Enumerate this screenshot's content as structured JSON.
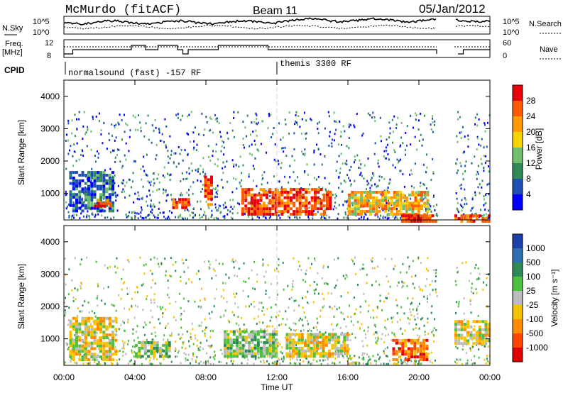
{
  "header": {
    "station": "McMurdo (fitACF)",
    "beam": "Beam 11",
    "date": "05/Jan/2012"
  },
  "noise_panel": {
    "left_label": "N.Sky",
    "right_label": "N.Search",
    "left_ticks": [
      "10^5",
      "10^0"
    ],
    "right_ticks": [
      "10^5",
      "10^0"
    ]
  },
  "freq_panel": {
    "left_label_1": "Freq.",
    "left_label_2": "[MHz]",
    "right_label": "Nave",
    "left_ticks": [
      "12",
      "8"
    ],
    "right_ticks": [
      "60",
      "0"
    ]
  },
  "cpid": {
    "label": "CPID",
    "segments": [
      {
        "name": "normalsound (fast) -157 RF",
        "start_hour": 0,
        "end_hour": 12
      },
      {
        "name": "themis 3300 RF",
        "start_hour": 12,
        "end_hour": 24
      }
    ]
  },
  "power_panel": {
    "ylabel": "Slant Range [km]",
    "colorbar_label": "Power [dB]",
    "colorbar_ticks": [
      "28",
      "24",
      "20",
      "16",
      "12",
      "8",
      "4"
    ],
    "colorbar_colors": [
      "#e8000b",
      "#ff5a00",
      "#ff9a00",
      "#f7d400",
      "#6fbf6f",
      "#2e8b57",
      "#1f4fb5",
      "#0000ff"
    ]
  },
  "velocity_panel": {
    "ylabel": "Slant Range [km]",
    "colorbar_label": "Velocity [m s⁻¹]",
    "colorbar_ticks": [
      "1000",
      "500",
      "100",
      "25",
      "-25",
      "-100",
      "-500",
      "-1000"
    ],
    "colorbar_colors": [
      "#1f3fa8",
      "#2e6fb0",
      "#2e8b57",
      "#4fbf3f",
      "#bcbcbc",
      "#f7c200",
      "#ff8c00",
      "#ff4500",
      "#e00000"
    ]
  },
  "axes": {
    "xlabel": "Time UT",
    "xticks": [
      "00:00",
      "04:00",
      "08:00",
      "12:00",
      "16:00",
      "20:00",
      "00:00"
    ],
    "yticks": [
      "1000",
      "2000",
      "3000",
      "4000"
    ]
  },
  "chart_data": [
    {
      "type": "heatmap",
      "title": "Power",
      "xlabel": "Time UT",
      "ylabel": "Slant Range [km]",
      "xlim": [
        0,
        24
      ],
      "ylim": [
        180,
        4500
      ],
      "colorbar": {
        "label": "Power [dB]",
        "range": [
          0,
          30
        ],
        "ticks": [
          4,
          8,
          12,
          16,
          20,
          24,
          28
        ]
      },
      "regions": [
        {
          "t": [
            0.3,
            2.7
          ],
          "r": [
            500,
            1700
          ],
          "level": "low-mid"
        },
        {
          "t": [
            1.7,
            2.6
          ],
          "r": [
            650,
            900
          ],
          "level": "high"
        },
        {
          "t": [
            6.1,
            7.0
          ],
          "r": [
            600,
            900
          ],
          "level": "high"
        },
        {
          "t": [
            7.9,
            8.3
          ],
          "r": [
            700,
            1600
          ],
          "level": "high"
        },
        {
          "t": [
            10.0,
            15.0
          ],
          "r": [
            400,
            1200
          ],
          "level": "high"
        },
        {
          "t": [
            16.0,
            20.5
          ],
          "r": [
            400,
            1100
          ],
          "level": "mid-high"
        },
        {
          "t": [
            19.0,
            21.0
          ],
          "r": [
            180,
            400
          ],
          "level": "high"
        },
        {
          "t": [
            22.0,
            24.0
          ],
          "r": [
            180,
            400
          ],
          "level": "high"
        }
      ],
      "data_gaps": [
        [
          21.0,
          22.0
        ]
      ]
    },
    {
      "type": "heatmap",
      "title": "Velocity",
      "xlabel": "Time UT",
      "ylabel": "Slant Range [km]",
      "xlim": [
        0,
        24
      ],
      "ylim": [
        180,
        4500
      ],
      "colorbar": {
        "label": "Velocity [m s-1]",
        "ticks": [
          1000,
          500,
          100,
          25,
          -25,
          -100,
          -500,
          -1000
        ]
      },
      "regions": [
        {
          "t": [
            0.3,
            3.0
          ],
          "r": [
            400,
            1700
          ],
          "level": "-100"
        },
        {
          "t": [
            4.0,
            6.0
          ],
          "r": [
            500,
            1000
          ],
          "level": "100"
        },
        {
          "t": [
            9.0,
            12.0
          ],
          "r": [
            500,
            1300
          ],
          "level": "100"
        },
        {
          "t": [
            12.5,
            16.0
          ],
          "r": [
            500,
            1200
          ],
          "level": "-100"
        },
        {
          "t": [
            18.5,
            20.5
          ],
          "r": [
            400,
            1000
          ],
          "level": "-500"
        },
        {
          "t": [
            22.0,
            24.0
          ],
          "r": [
            900,
            1600
          ],
          "level": "-100"
        }
      ],
      "data_gaps": [
        [
          21.0,
          22.0
        ]
      ]
    }
  ]
}
